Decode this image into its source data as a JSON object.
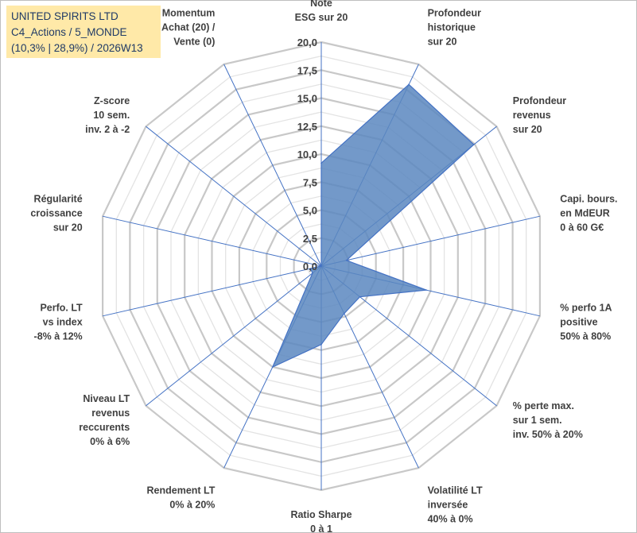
{
  "header": {
    "line1": "UNITED SPIRITS LTD",
    "line2": "C4_Actions / 5_MONDE",
    "line3": "(10,3% | 28,9%) / 2026W13"
  },
  "colors": {
    "fill": "#5b87c0",
    "stroke": "#4472c4",
    "grid": "#c8c8c8",
    "title_bg": "#ffe9a8",
    "title_text": "#1f3a66"
  },
  "chart_data": {
    "type": "radar",
    "title": "UNITED SPIRITS LTD",
    "rmin": 0,
    "rmax": 20,
    "ticks": [
      "0,0",
      "2,5",
      "5,0",
      "7,5",
      "10,0",
      "12,5",
      "15,0",
      "17,5",
      "20,0"
    ],
    "tick_values": [
      0,
      2.5,
      5,
      7.5,
      10,
      12.5,
      15,
      17.5,
      20
    ],
    "categories": [
      [
        "Note",
        "ESG sur 20"
      ],
      [
        "Profondeur",
        "historique",
        "sur 20"
      ],
      [
        "Profondeur",
        "revenus",
        "sur 20"
      ],
      [
        "Capi. bours.",
        "en MdEUR",
        "0 à 60 G€"
      ],
      [
        "% perfo 1A",
        "positive",
        "50% à 80%"
      ],
      [
        "% perte max.",
        "sur 1 sem.",
        "inv. 50% à 20%"
      ],
      [
        "Volatilité LT",
        "inversée",
        "40% à 0%"
      ],
      [
        "Ratio Sharpe",
        "0 à 1"
      ],
      [
        "Rendement LT",
        "0% à 20%"
      ],
      [
        "Niveau LT",
        "revenus",
        "reccurents",
        "0% à 6%"
      ],
      [
        "Perfo. LT",
        "vs index",
        "-8% à 12%"
      ],
      [
        "Régularité",
        "croissance",
        "sur 20"
      ],
      [
        "Z-score",
        "10 sem.",
        "inv. 2 à -2"
      ],
      [
        "Momentum",
        "Achat (20) /",
        "Vente (0)"
      ]
    ],
    "series": [
      {
        "name": "UNITED SPIRITS LTD",
        "values": [
          9.2,
          18.0,
          17.4,
          2.3,
          9.6,
          4.4,
          4.7,
          7.0,
          10.0,
          1.0,
          1.0,
          0.0,
          0.0,
          0.0
        ]
      }
    ]
  }
}
